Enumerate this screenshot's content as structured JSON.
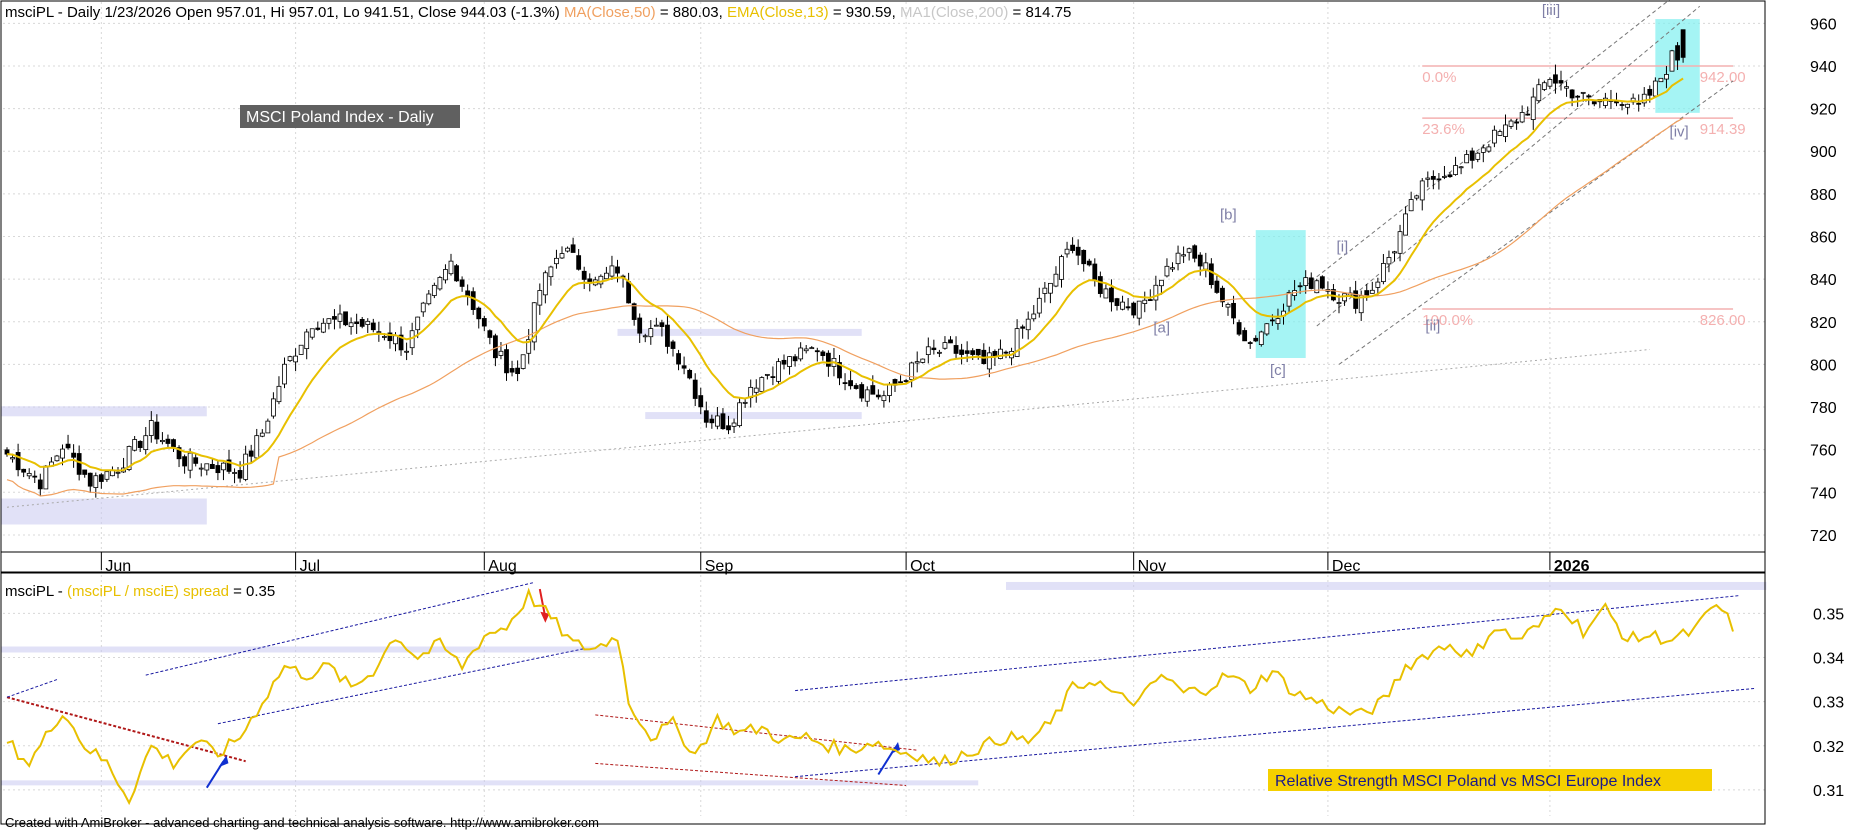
{
  "header": {
    "symbol": "msciPL",
    "segments": [
      {
        "text": "msciPL - Daily 1/23/2026 Open 957.01, Hi 957.01, Lo 941.51, Close 944.03 (-1.3%) ",
        "color": "#000000"
      },
      {
        "text": "MA(Close,50)",
        "color": "#f0a060"
      },
      {
        "text": " = 880.03, ",
        "color": "#000000"
      },
      {
        "text": "EMA(Close,13)",
        "color": "#e8c000"
      },
      {
        "text": " = 930.59, ",
        "color": "#000000"
      },
      {
        "text": "MA1(Close,200)",
        "color": "#c8c8c8"
      },
      {
        "text": " = 814.75",
        "color": "#000000"
      }
    ]
  },
  "chart_title": "MSCI Poland Index - Daliy",
  "lower_header": {
    "segments": [
      {
        "text": "msciPL - ",
        "color": "#000000"
      },
      {
        "text": "(msciPL / msciE) spread",
        "color": "#e8c000"
      },
      {
        "text": " = 0.35",
        "color": "#000000"
      }
    ]
  },
  "rs_label": "Relative Strength MSCI Poland vs MSCI Europe Index",
  "footer": "Created with AmiBroker - advanced charting and technical analysis software. http://www.amibroker.com",
  "colors": {
    "ema": "#e8c000",
    "ma50": "#f0a060",
    "ma200": "#c8c8c8",
    "spread": "#e8c000",
    "band": "#c8c8f0",
    "cyan": "#7ff0f0",
    "fib": "#f4b0b0",
    "wave": "#7f7fa6",
    "rs_label_bg": "#f5d000"
  },
  "chart_data": [
    {
      "type": "candlestick",
      "title": "MSCI Poland Index - Daliy",
      "ylim": [
        712,
        970
      ],
      "y_ticks": [
        720,
        740,
        760,
        780,
        800,
        820,
        840,
        860,
        880,
        900,
        920,
        940,
        960
      ],
      "x_labels": [
        "Jun",
        "Jul",
        "Aug",
        "Sep",
        "Oct",
        "Nov",
        "Dec",
        "2026"
      ],
      "x_label_index": [
        17,
        52,
        86,
        125,
        162,
        203,
        238,
        278
      ],
      "last_bar": {
        "date": "1/23/2026",
        "open": 957.01,
        "high": 957.01,
        "low": 941.51,
        "close": 944.03
      },
      "indicators": {
        "MA(Close,50)": 880.03,
        "EMA(Close,13)": 930.59,
        "MA1(Close,200)": 814.75
      },
      "anchors": [
        [
          0,
          758
        ],
        [
          6,
          745
        ],
        [
          10,
          762
        ],
        [
          15,
          745
        ],
        [
          20,
          752
        ],
        [
          26,
          770
        ],
        [
          32,
          755
        ],
        [
          38,
          752
        ],
        [
          42,
          750
        ],
        [
          46,
          768
        ],
        [
          50,
          798
        ],
        [
          55,
          820
        ],
        [
          62,
          820
        ],
        [
          68,
          815
        ],
        [
          72,
          808
        ],
        [
          75,
          825
        ],
        [
          80,
          848
        ],
        [
          84,
          828
        ],
        [
          88,
          805
        ],
        [
          92,
          795
        ],
        [
          96,
          835
        ],
        [
          100,
          855
        ],
        [
          106,
          838
        ],
        [
          110,
          845
        ],
        [
          114,
          818
        ],
        [
          118,
          815
        ],
        [
          122,
          800
        ],
        [
          126,
          775
        ],
        [
          130,
          772
        ],
        [
          134,
          790
        ],
        [
          138,
          798
        ],
        [
          142,
          803
        ],
        [
          146,
          808
        ],
        [
          150,
          797
        ],
        [
          154,
          788
        ],
        [
          158,
          785
        ],
        [
          162,
          795
        ],
        [
          166,
          805
        ],
        [
          170,
          807
        ],
        [
          176,
          800
        ],
        [
          180,
          806
        ],
        [
          184,
          820
        ],
        [
          188,
          838
        ],
        [
          192,
          857
        ],
        [
          196,
          838
        ],
        [
          200,
          830
        ],
        [
          204,
          826
        ],
        [
          208,
          842
        ],
        [
          212,
          853
        ],
        [
          216,
          845
        ],
        [
          220,
          825
        ],
        [
          224,
          810
        ],
        [
          228,
          822
        ],
        [
          232,
          835
        ],
        [
          236,
          840
        ],
        [
          240,
          832
        ],
        [
          243,
          830
        ],
        [
          246,
          836
        ],
        [
          250,
          855
        ],
        [
          254,
          880
        ],
        [
          258,
          890
        ],
        [
          262,
          892
        ],
        [
          266,
          903
        ],
        [
          270,
          910
        ],
        [
          274,
          920
        ],
        [
          278,
          935
        ],
        [
          282,
          928
        ],
        [
          286,
          922
        ],
        [
          290,
          926
        ],
        [
          294,
          920
        ],
        [
          297,
          930
        ],
        [
          300,
          944
        ]
      ],
      "labels": [
        {
          "text": "[iii]",
          "i": 278,
          "v": 964
        },
        {
          "text": "[b]",
          "i": 220,
          "v": 868
        },
        {
          "text": "[i]",
          "i": 241,
          "v": 853
        },
        {
          "text": "[a]",
          "i": 208,
          "v": 815
        },
        {
          "text": "[c]",
          "i": 229,
          "v": 795
        },
        {
          "text": "[ii]",
          "i": 257,
          "v": 816
        },
        {
          "text": "[iv]",
          "i": 301,
          "v": 907
        }
      ],
      "fib_levels": [
        {
          "label": "0.0%",
          "value": 940,
          "price": "942.00"
        },
        {
          "label": "23.6%",
          "value": 915.5,
          "price": "914.39"
        },
        {
          "label": "100.0%",
          "value": 826,
          "price": "826.00"
        }
      ]
    },
    {
      "type": "line",
      "title": "(msciPL / msciE) spread",
      "last_value": 0.35,
      "ylim": [
        0.305,
        0.358
      ],
      "y_ticks": [
        0.31,
        0.32,
        0.33,
        0.34,
        0.35
      ],
      "anchors": [
        [
          0,
          0.321
        ],
        [
          4,
          0.316
        ],
        [
          7,
          0.322
        ],
        [
          10,
          0.328
        ],
        [
          14,
          0.32
        ],
        [
          18,
          0.316
        ],
        [
          22,
          0.308
        ],
        [
          26,
          0.32
        ],
        [
          30,
          0.316
        ],
        [
          34,
          0.321
        ],
        [
          38,
          0.318
        ],
        [
          42,
          0.322
        ],
        [
          46,
          0.33
        ],
        [
          50,
          0.338
        ],
        [
          54,
          0.336
        ],
        [
          58,
          0.338
        ],
        [
          62,
          0.333
        ],
        [
          66,
          0.337
        ],
        [
          70,
          0.345
        ],
        [
          74,
          0.34
        ],
        [
          78,
          0.343
        ],
        [
          82,
          0.338
        ],
        [
          86,
          0.345
        ],
        [
          90,
          0.347
        ],
        [
          94,
          0.354
        ],
        [
          98,
          0.349
        ],
        [
          102,
          0.343
        ],
        [
          106,
          0.342
        ],
        [
          110,
          0.345
        ],
        [
          112,
          0.33
        ],
        [
          116,
          0.322
        ],
        [
          120,
          0.325
        ],
        [
          124,
          0.318
        ],
        [
          128,
          0.326
        ],
        [
          132,
          0.323
        ],
        [
          136,
          0.324
        ],
        [
          140,
          0.321
        ],
        [
          144,
          0.322
        ],
        [
          148,
          0.32
        ],
        [
          152,
          0.319
        ],
        [
          156,
          0.321
        ],
        [
          160,
          0.319
        ],
        [
          164,
          0.318
        ],
        [
          168,
          0.316
        ],
        [
          172,
          0.318
        ],
        [
          176,
          0.32
        ],
        [
          180,
          0.322
        ],
        [
          184,
          0.321
        ],
        [
          188,
          0.325
        ],
        [
          192,
          0.333
        ],
        [
          196,
          0.335
        ],
        [
          200,
          0.331
        ],
        [
          204,
          0.33
        ],
        [
          208,
          0.336
        ],
        [
          212,
          0.332
        ],
        [
          216,
          0.333
        ],
        [
          220,
          0.336
        ],
        [
          224,
          0.333
        ],
        [
          228,
          0.337
        ],
        [
          232,
          0.332
        ],
        [
          236,
          0.33
        ],
        [
          240,
          0.328
        ],
        [
          244,
          0.327
        ],
        [
          248,
          0.33
        ],
        [
          252,
          0.338
        ],
        [
          256,
          0.341
        ],
        [
          260,
          0.343
        ],
        [
          264,
          0.34
        ],
        [
          268,
          0.347
        ],
        [
          272,
          0.344
        ],
        [
          276,
          0.347
        ],
        [
          280,
          0.352
        ],
        [
          284,
          0.346
        ],
        [
          288,
          0.351
        ],
        [
          292,
          0.344
        ],
        [
          296,
          0.345
        ],
        [
          300,
          0.344
        ],
        [
          304,
          0.346
        ],
        [
          308,
          0.352
        ],
        [
          311,
          0.347
        ]
      ]
    }
  ]
}
